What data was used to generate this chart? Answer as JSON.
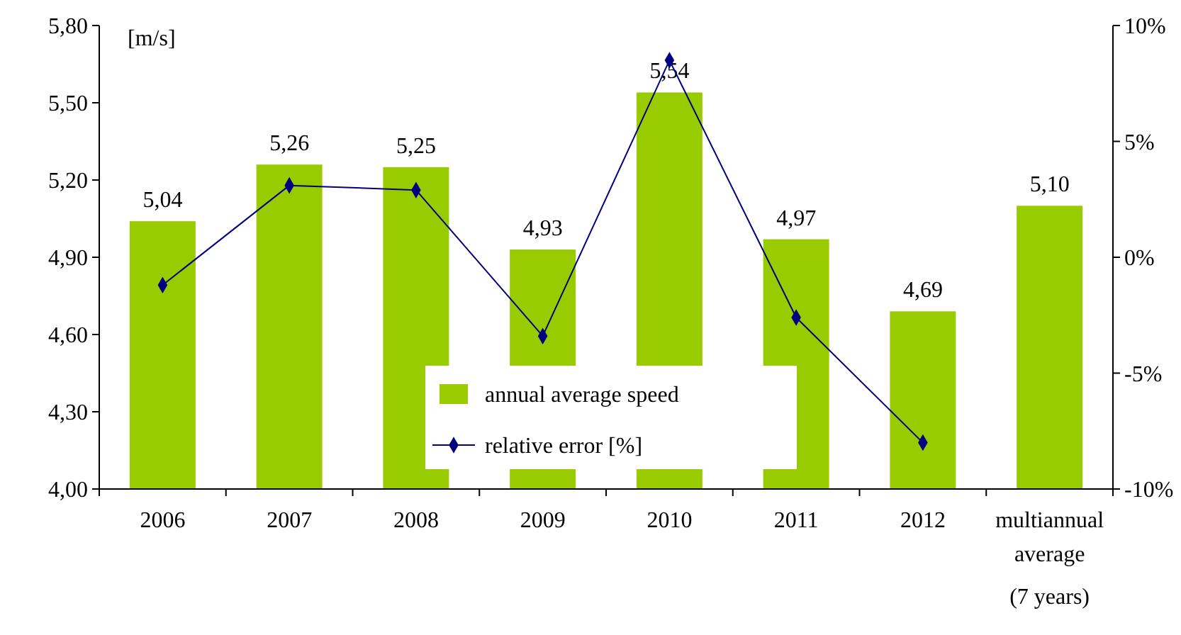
{
  "chart_data": {
    "type": "bar",
    "ylabel": "[m/s]",
    "categories": [
      "2006",
      "2007",
      "2008",
      "2009",
      "2010",
      "2011",
      "2012",
      "multiannual average (7 years)"
    ],
    "ylim": [
      4.0,
      5.8
    ],
    "yticks": [
      {
        "value": 4.0,
        "label": "4,00"
      },
      {
        "value": 4.3,
        "label": "4,30"
      },
      {
        "value": 4.6,
        "label": "4,60"
      },
      {
        "value": 4.9,
        "label": "4,90"
      },
      {
        "value": 5.2,
        "label": "5,20"
      },
      {
        "value": 5.5,
        "label": "5,50"
      },
      {
        "value": 5.8,
        "label": "5,80"
      }
    ],
    "y2lim": [
      -10,
      10
    ],
    "y2ticks": [
      {
        "value": -10,
        "label": "-10%"
      },
      {
        "value": -5,
        "label": "-5%"
      },
      {
        "value": 0,
        "label": "0%"
      },
      {
        "value": 5,
        "label": "5%"
      },
      {
        "value": 10,
        "label": "10%"
      }
    ],
    "series": [
      {
        "name": "annual average speed",
        "color": "#99cc00",
        "values": [
          5.04,
          5.26,
          5.25,
          4.93,
          5.54,
          4.97,
          4.69,
          5.1
        ],
        "value_labels": [
          "5,04",
          "5,26",
          "5,25",
          "4,93",
          "5,54",
          "4,97",
          "4,69",
          "5,10"
        ]
      },
      {
        "name": "relative error [%]",
        "type": "line",
        "axis": "y2",
        "color": "#000080",
        "marker": "diamond",
        "line_style": "solid",
        "values": [
          -1.2,
          3.1,
          2.9,
          -3.4,
          8.5,
          -2.6,
          -8.0,
          null
        ]
      }
    ],
    "grid": false,
    "legend": "bottom"
  }
}
